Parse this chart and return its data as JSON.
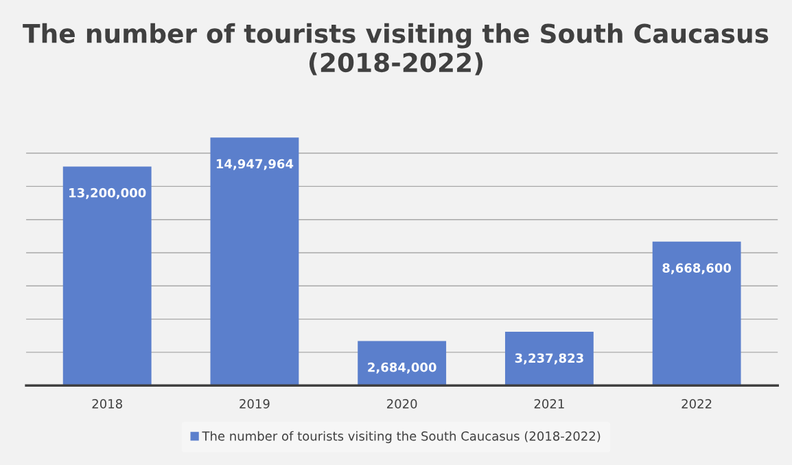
{
  "chart_data": {
    "type": "bar",
    "title": "The number of tourists visiting the South Caucasus (2018-2022)",
    "categories": [
      "2018",
      "2019",
      "2020",
      "2021",
      "2022"
    ],
    "series": [
      {
        "name": "The number of tourists visiting the South Caucasus (2018-2022)",
        "color": "#5b7fcc",
        "values": [
          13200000,
          14947964,
          2684000,
          3237823,
          8668600
        ],
        "value_labels": [
          "13,200,000",
          "14,947,964",
          "2,684,000",
          "3,237,823",
          "8,668,600"
        ]
      }
    ],
    "tick_labels": "x",
    "grid": "y",
    "legend": "bottom"
  }
}
